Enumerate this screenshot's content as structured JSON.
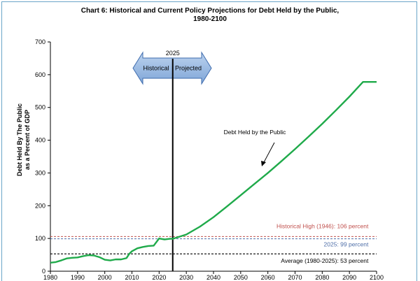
{
  "chart_data": {
    "type": "line",
    "title": "Chart 6:  Historical and Current Policy Projections for Debt Held by the Public,",
    "title_line2": "1980-2100",
    "ylabel_line1": "Debt Held By The Public",
    "ylabel_line2": "as a Percent of GDP",
    "xlim": [
      1980,
      2100
    ],
    "ylim": [
      0,
      700
    ],
    "x_ticks": [
      1980,
      1990,
      2000,
      2010,
      2020,
      2030,
      2040,
      2050,
      2060,
      2070,
      2080,
      2090,
      2100
    ],
    "y_ticks": [
      0,
      100,
      200,
      300,
      400,
      500,
      600,
      700
    ],
    "grid": false,
    "series": [
      {
        "name": "Debt Held by the Public",
        "color": "#1faa4a",
        "x": [
          1980,
          1982,
          1984,
          1986,
          1988,
          1990,
          1992,
          1994,
          1996,
          1998,
          2000,
          2002,
          2004,
          2006,
          2008,
          2009,
          2010,
          2012,
          2014,
          2016,
          2018,
          2020,
          2022,
          2024,
          2025,
          2030,
          2035,
          2040,
          2045,
          2050,
          2055,
          2060,
          2065,
          2070,
          2075,
          2080,
          2085,
          2090,
          2095,
          2100
        ],
        "y": [
          26,
          28,
          33,
          39,
          41,
          42,
          46,
          49,
          48,
          43,
          35,
          33,
          36,
          36,
          40,
          53,
          61,
          70,
          74,
          77,
          78,
          100,
          97,
          99,
          99,
          112,
          136,
          165,
          198,
          232,
          266,
          300,
          336,
          373,
          411,
          450,
          491,
          533,
          578,
          578
        ]
      }
    ],
    "reference_lines": [
      {
        "label": "Historical High (1946): 106 percent",
        "value": 106,
        "color": "#c0504d",
        "style": "dashed"
      },
      {
        "label": "2025: 99 percent",
        "value": 99,
        "color": "#4f6fa8",
        "style": "dashed"
      },
      {
        "label": "Average (1980-2025): 53 percent",
        "value": 53,
        "color": "#000000",
        "style": "dashed"
      }
    ],
    "divider": {
      "year": "2025",
      "left_label": "Historical",
      "right_label": "Projected"
    },
    "series_annotation": "Debt Held by the Public"
  }
}
